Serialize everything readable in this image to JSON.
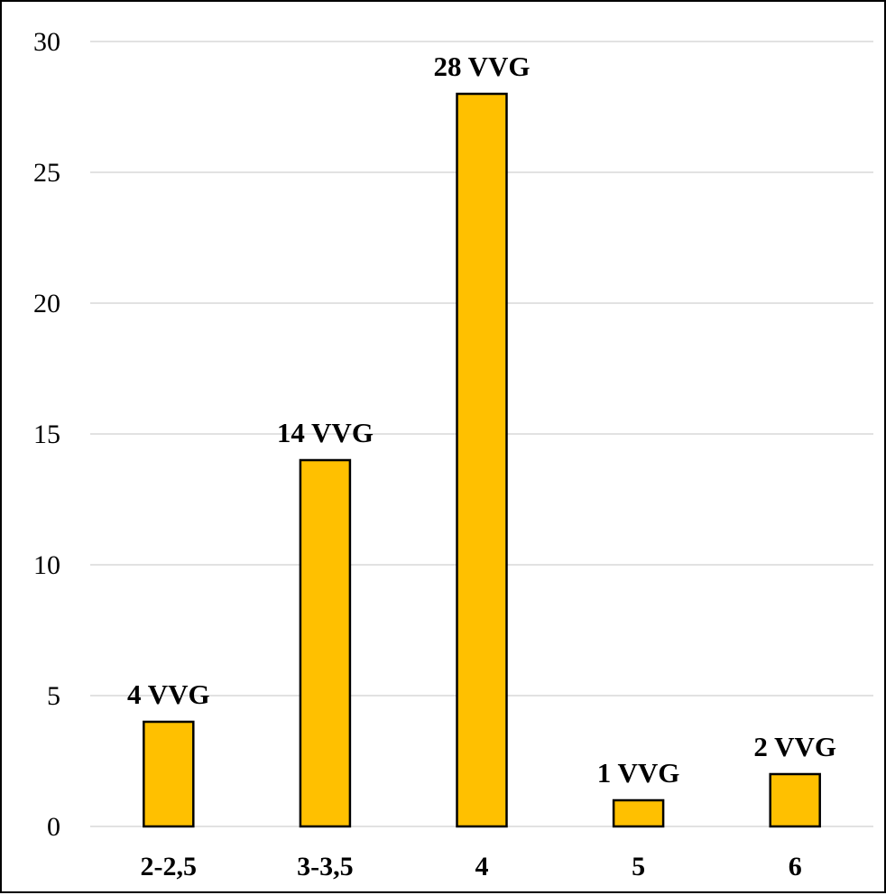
{
  "chart_data": {
    "type": "bar",
    "categories": [
      "2-2,5",
      "3-3,5",
      "4",
      "5",
      "6"
    ],
    "values": [
      4,
      14,
      28,
      1,
      2
    ],
    "data_labels": [
      "4 VVG",
      "14 VVG",
      "28 VVG",
      "1 VVG",
      "2 VVG"
    ],
    "y_ticks": [
      "0",
      "5",
      "10",
      "15",
      "20",
      "25",
      "30"
    ],
    "ylim": [
      0,
      30
    ],
    "grid": true,
    "legend": "none",
    "colors": {
      "bar": "#FFC000",
      "bar_outline": "#000000",
      "grid": "#D9D9D9"
    }
  }
}
